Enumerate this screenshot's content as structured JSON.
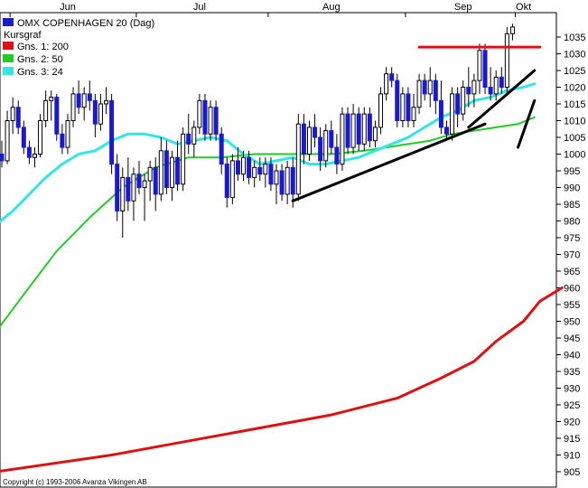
{
  "chart_data": {
    "type": "candlestick",
    "title": "OMX COPENHAGEN 20 (Dag)",
    "legend": {
      "placement": "top-left",
      "heading": "Kursgraf",
      "items": [
        {
          "label": "OMX COPENHAGEN 20 (Dag)",
          "color": "#1a1acc"
        },
        {
          "label": "Gns. 1: 200",
          "color": "#dd1111"
        },
        {
          "label": "Gns. 2: 50",
          "color": "#22cc22"
        },
        {
          "label": "Gns. 3: 24",
          "color": "#33e6e6"
        }
      ]
    },
    "copyright": "Copyright (c) 1993-2006 Avanza Vikingen AB",
    "x_labels": [
      {
        "label": "Jun",
        "index": 12
      },
      {
        "label": "Jul",
        "index": 36
      },
      {
        "label": "Aug",
        "index": 60
      },
      {
        "label": "Sep",
        "index": 84
      },
      {
        "label": "Okt",
        "index": 95
      }
    ],
    "month_separators": [
      1,
      24,
      48,
      73,
      93
    ],
    "y_axis": {
      "min": 905,
      "max": 1040,
      "step": 5,
      "ticks": [
        1035,
        1030,
        1025,
        1020,
        1015,
        1010,
        1005,
        1000,
        995,
        990,
        985,
        980,
        975,
        970,
        965,
        960,
        955,
        950,
        945,
        940,
        935,
        930,
        925,
        920,
        915,
        910,
        905
      ],
      "position": "right"
    },
    "grid": false,
    "candles": [
      [
        1000,
        1004,
        996,
        998
      ],
      [
        998,
        1013,
        997,
        1010
      ],
      [
        1010,
        1017,
        1006,
        1014
      ],
      [
        1014,
        1016,
        1006,
        1008
      ],
      [
        1008,
        1010,
        1000,
        1002
      ],
      [
        1002,
        1004,
        997,
        999
      ],
      [
        999,
        1002,
        996,
        1000
      ],
      [
        1000,
        1012,
        999,
        1010
      ],
      [
        1010,
        1019,
        1008,
        1016
      ],
      [
        1016,
        1019,
        1010,
        1017
      ],
      [
        1017,
        1018,
        1004,
        1006
      ],
      [
        1006,
        1009,
        1000,
        1002
      ],
      [
        1002,
        1012,
        1000,
        1010
      ],
      [
        1010,
        1020,
        1008,
        1018
      ],
      [
        1018,
        1022,
        1012,
        1014
      ],
      [
        1014,
        1020,
        1010,
        1018
      ],
      [
        1018,
        1022,
        1013,
        1016
      ],
      [
        1016,
        1018,
        1005,
        1009
      ],
      [
        1009,
        1018,
        1007,
        1015
      ],
      [
        1015,
        1020,
        1012,
        1016
      ],
      [
        1016,
        1018,
        994,
        997
      ],
      [
        997,
        1000,
        980,
        983
      ],
      [
        983,
        996,
        975,
        993
      ],
      [
        993,
        999,
        983,
        986
      ],
      [
        986,
        996,
        980,
        994
      ],
      [
        994,
        998,
        988,
        990
      ],
      [
        990,
        994,
        980,
        992
      ],
      [
        992,
        998,
        986,
        996
      ],
      [
        996,
        999,
        983,
        988
      ],
      [
        988,
        1005,
        986,
        1001
      ],
      [
        1001,
        1004,
        988,
        990
      ],
      [
        990,
        1001,
        986,
        999
      ],
      [
        999,
        1004,
        989,
        991
      ],
      [
        991,
        1008,
        989,
        1006
      ],
      [
        1006,
        1012,
        1000,
        1003
      ],
      [
        1003,
        1010,
        999,
        1008
      ],
      [
        1008,
        1018,
        1006,
        1016
      ],
      [
        1016,
        1018,
        1004,
        1006
      ],
      [
        1006,
        1016,
        1004,
        1014
      ],
      [
        1014,
        1016,
        1004,
        1006
      ],
      [
        1006,
        1008,
        994,
        997
      ],
      [
        997,
        999,
        984,
        987
      ],
      [
        987,
        1000,
        985,
        998
      ],
      [
        998,
        1002,
        992,
        994
      ],
      [
        994,
        1001,
        992,
        999
      ],
      [
        999,
        1001,
        991,
        993
      ],
      [
        993,
        998,
        990,
        996
      ],
      [
        996,
        999,
        992,
        994
      ],
      [
        994,
        999,
        990,
        997
      ],
      [
        997,
        999,
        989,
        991
      ],
      [
        991,
        997,
        985,
        995
      ],
      [
        995,
        997,
        986,
        988
      ],
      [
        988,
        998,
        985,
        996
      ],
      [
        996,
        999,
        984,
        988
      ],
      [
        988,
        1012,
        986,
        1009
      ],
      [
        1009,
        1012,
        997,
        1000
      ],
      [
        1000,
        1010,
        998,
        1008
      ],
      [
        1008,
        1012,
        1002,
        1005
      ],
      [
        1005,
        1008,
        995,
        998
      ],
      [
        998,
        1009,
        996,
        1007
      ],
      [
        1007,
        1010,
        1000,
        1002
      ],
      [
        1002,
        1006,
        994,
        997
      ],
      [
        997,
        1014,
        995,
        1012
      ],
      [
        1012,
        1014,
        1000,
        1002
      ],
      [
        1002,
        1015,
        1000,
        1012
      ],
      [
        1012,
        1014,
        1001,
        1003
      ],
      [
        1003,
        1014,
        1001,
        1012
      ],
      [
        1012,
        1014,
        1002,
        1004
      ],
      [
        1004,
        1010,
        1002,
        1008
      ],
      [
        1008,
        1020,
        1006,
        1018
      ],
      [
        1018,
        1026,
        1016,
        1024
      ],
      [
        1024,
        1026,
        1020,
        1022
      ],
      [
        1022,
        1024,
        1008,
        1010
      ],
      [
        1010,
        1020,
        1008,
        1018
      ],
      [
        1018,
        1020,
        1008,
        1010
      ],
      [
        1010,
        1018,
        1008,
        1014
      ],
      [
        1014,
        1024,
        1012,
        1022
      ],
      [
        1022,
        1024,
        1016,
        1018
      ],
      [
        1018,
        1026,
        1014,
        1022
      ],
      [
        1022,
        1024,
        1012,
        1016
      ],
      [
        1016,
        1022,
        1006,
        1008
      ],
      [
        1008,
        1010,
        1004,
        1006
      ],
      [
        1006,
        1020,
        1004,
        1018
      ],
      [
        1018,
        1020,
        1008,
        1012
      ],
      [
        1012,
        1022,
        1010,
        1020
      ],
      [
        1020,
        1026,
        1014,
        1018
      ],
      [
        1018,
        1024,
        1014,
        1022
      ],
      [
        1022,
        1033,
        1018,
        1031
      ],
      [
        1031,
        1033,
        1018,
        1020
      ],
      [
        1020,
        1026,
        1016,
        1018
      ],
      [
        1018,
        1025,
        1016,
        1023
      ],
      [
        1023,
        1026,
        1018,
        1020
      ],
      [
        1020,
        1038,
        1018,
        1036
      ],
      [
        1036,
        1039,
        1034,
        1038
      ]
    ],
    "series": [
      {
        "name": "Gns. 1: 200",
        "color": "#dd1111",
        "points": [
          [
            -1,
            905
          ],
          [
            20,
            910
          ],
          [
            40,
            916
          ],
          [
            60,
            922
          ],
          [
            72,
            927
          ],
          [
            80,
            933
          ],
          [
            86,
            938
          ],
          [
            90,
            944
          ],
          [
            95,
            950
          ],
          [
            98,
            956
          ],
          [
            102,
            960
          ]
        ]
      },
      {
        "name": "Gns. 2: 50",
        "color": "#22cc22",
        "points": [
          [
            -1,
            947
          ],
          [
            4,
            958
          ],
          [
            10,
            971
          ],
          [
            16,
            981
          ],
          [
            22,
            990
          ],
          [
            28,
            996
          ],
          [
            34,
            999
          ],
          [
            40,
            999
          ],
          [
            46,
            1000
          ],
          [
            54,
            1000
          ],
          [
            60,
            1000
          ],
          [
            66,
            1001
          ],
          [
            70,
            1002
          ],
          [
            74,
            1003
          ],
          [
            78,
            1004
          ],
          [
            82,
            1006
          ],
          [
            86,
            1007
          ],
          [
            90,
            1008
          ],
          [
            94,
            1009
          ],
          [
            97,
            1011
          ]
        ]
      },
      {
        "name": "Gns. 3: 24",
        "color": "#33e6e6",
        "points": [
          [
            -1,
            979
          ],
          [
            2,
            983
          ],
          [
            5,
            988
          ],
          [
            8,
            993
          ],
          [
            11,
            997
          ],
          [
            14,
            1000
          ],
          [
            17,
            1001
          ],
          [
            20,
            1004
          ],
          [
            23,
            1006
          ],
          [
            26,
            1006
          ],
          [
            29,
            1005
          ],
          [
            32,
            1003
          ],
          [
            35,
            1004
          ],
          [
            38,
            1005
          ],
          [
            41,
            1004
          ],
          [
            44,
            1000
          ],
          [
            47,
            997
          ],
          [
            50,
            998
          ],
          [
            53,
            999
          ],
          [
            56,
            997
          ],
          [
            59,
            997
          ],
          [
            62,
            998
          ],
          [
            65,
            999
          ],
          [
            68,
            1001
          ],
          [
            71,
            1003
          ],
          [
            74,
            1005
          ],
          [
            77,
            1008
          ],
          [
            80,
            1011
          ],
          [
            83,
            1013
          ],
          [
            86,
            1016
          ],
          [
            89,
            1017
          ],
          [
            92,
            1019
          ],
          [
            95,
            1020
          ],
          [
            97,
            1021
          ]
        ]
      }
    ],
    "trendlines": [
      {
        "color": "#000000",
        "from": [
          53,
          986
        ],
        "to": [
          88,
          1009
        ]
      },
      {
        "color": "#000000",
        "from": [
          85,
          1008
        ],
        "to": [
          97,
          1025
        ]
      },
      {
        "color": "#000000",
        "from": [
          94,
          1002
        ],
        "to": [
          97,
          1016
        ]
      },
      {
        "color": "#dd1111",
        "from": [
          76,
          1032
        ],
        "to": [
          98,
          1032
        ]
      }
    ]
  }
}
